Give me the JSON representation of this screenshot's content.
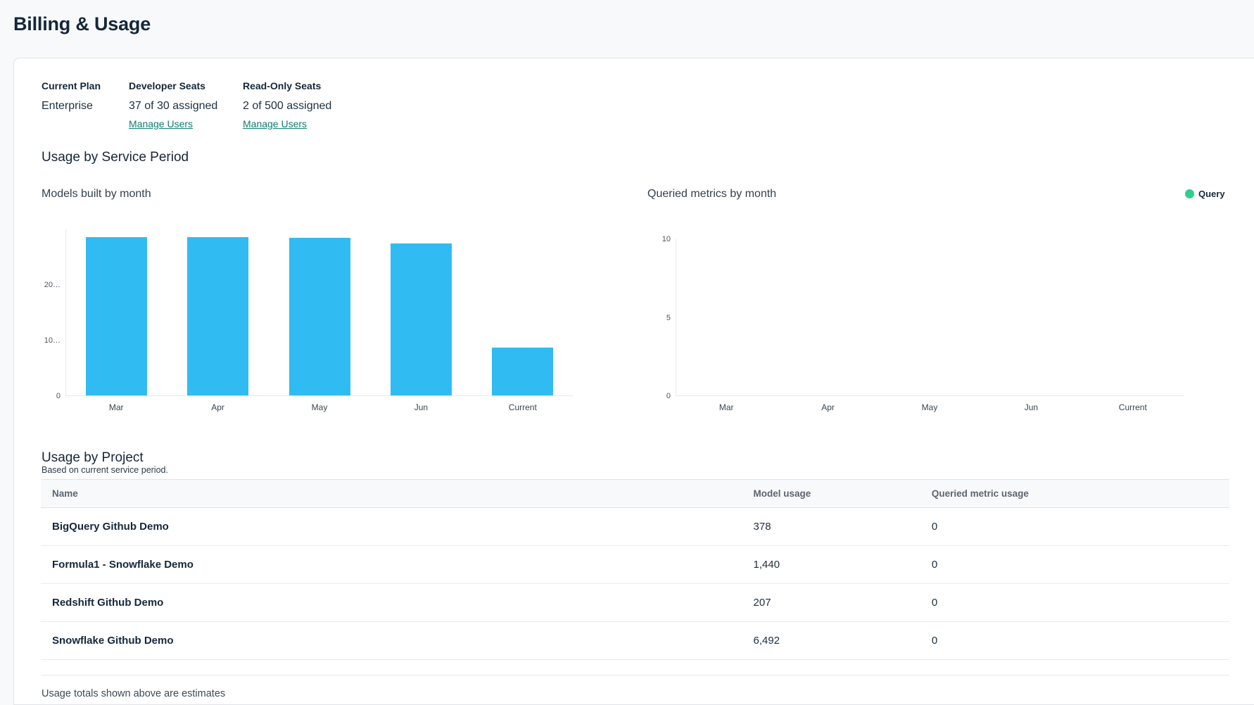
{
  "page": {
    "title": "Billing & Usage"
  },
  "plan": {
    "current_plan_label": "Current Plan",
    "current_plan_value": "Enterprise",
    "developer_seats_label": "Developer Seats",
    "developer_seats_value": "37 of 30 assigned",
    "developer_seats_link": "Manage Users",
    "readonly_seats_label": "Read-Only Seats",
    "readonly_seats_value": "2 of 500 assigned",
    "readonly_seats_link": "Manage Users"
  },
  "usage_by_service_period": {
    "title": "Usage by Service Period"
  },
  "chart_data": [
    {
      "type": "bar",
      "title": "Models built by month",
      "categories": [
        "Mar",
        "Apr",
        "May",
        "Jun",
        "Current"
      ],
      "values": [
        28500,
        28450,
        28400,
        27300,
        8600
      ],
      "ytick_labels": [
        "0",
        "10…",
        "20…"
      ],
      "ytick_values": [
        0,
        10000,
        20000
      ],
      "ylim": [
        0,
        30000
      ],
      "xlabel": "",
      "ylabel": "",
      "grid": false,
      "bar_color": "#30bcf2",
      "note": "y-axis tick labels are truncated with ellipsis; values estimated from 10k/20k gridline positions"
    },
    {
      "type": "bar",
      "title": "Queried metrics by month",
      "categories": [
        "Mar",
        "Apr",
        "May",
        "Jun",
        "Current"
      ],
      "values": [
        0,
        0,
        0,
        0,
        0
      ],
      "ytick_labels": [
        "0",
        "5",
        "10"
      ],
      "ytick_values": [
        0,
        5,
        10
      ],
      "ylim": [
        0,
        10
      ],
      "xlabel": "",
      "ylabel": "",
      "grid": false,
      "bar_color": "#2ed08e",
      "legend": [
        {
          "label": "Query",
          "color": "#2ed08e"
        }
      ],
      "legend_position": "top-right"
    }
  ],
  "usage_by_project": {
    "title": "Usage by Project",
    "subtitle": "Based on current service period.",
    "table": {
      "columns": [
        "Name",
        "Model usage",
        "Queried metric usage"
      ],
      "rows": [
        [
          "BigQuery Github Demo",
          "378",
          "0"
        ],
        [
          "Formula1 - Snowflake Demo",
          "1,440",
          "0"
        ],
        [
          "Redshift Github Demo",
          "207",
          "0"
        ],
        [
          "Snowflake Github Demo",
          "6,492",
          "0"
        ]
      ]
    },
    "footer_note": "Usage totals shown above are estimates"
  },
  "colors": {
    "link_teal": "#0e7d6f",
    "bar_cyan": "#30bcf2",
    "legend_green": "#2ed08e",
    "heading_navy": "#15273a",
    "page_background": "#f8f9fa"
  }
}
